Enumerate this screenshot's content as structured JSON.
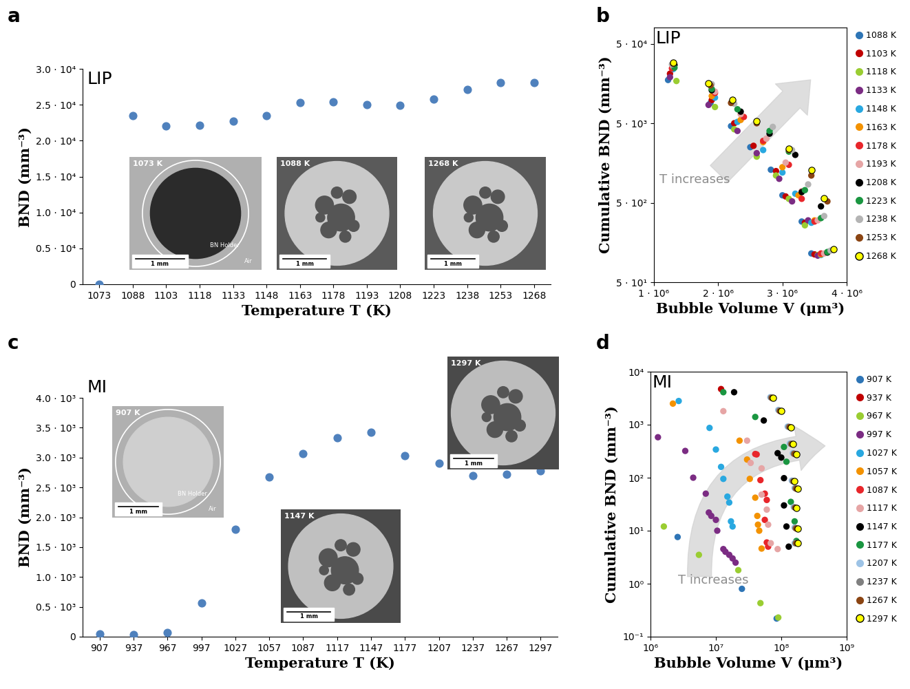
{
  "chart_data": [
    {
      "type": "scatter",
      "title": "a",
      "subtitle": "LIP",
      "xlabel": "Temperature T (K)",
      "ylabel": "BND (mm⁻³)",
      "categories": [
        "1073",
        "1088",
        "1103",
        "1118",
        "1133",
        "1148",
        "1163",
        "1178",
        "1193",
        "1208",
        "1223",
        "1238",
        "1253",
        "1268"
      ],
      "values": [
        0,
        23500,
        22000,
        22100,
        22700,
        23500,
        25300,
        25400,
        25000,
        24900,
        25800,
        27100,
        28100,
        28100
      ],
      "color": "#4f81bd",
      "marker": "o",
      "ylim": [
        0,
        30000
      ],
      "yticks": [
        0,
        {
          "value": 5000,
          "label": "0.5 · 10⁴"
        },
        {
          "value": 10000,
          "label": "1.0 · 10⁴"
        },
        {
          "value": 15000,
          "label": "1.5 · 10⁴"
        },
        {
          "value": 20000,
          "label": "2.0 · 10⁴"
        },
        {
          "value": 25000,
          "label": "2.5 · 10⁴"
        },
        {
          "value": 30000,
          "label": "3.0 · 10⁴"
        }
      ],
      "insets": [
        {
          "label": "1073 K",
          "holder": "BN Holder",
          "outside": "Air",
          "scale": "1 mm"
        },
        {
          "label": "1088 K",
          "scale": "1 mm"
        },
        {
          "label": "1268 K",
          "scale": "1 mm"
        }
      ]
    },
    {
      "type": "scatter",
      "title": "b",
      "subtitle": "LIP",
      "annotations": [
        "T increases"
      ],
      "xlabel": "Bubble Volume V (μm³)",
      "ylabel": "Cumulative BND (mm⁻³)",
      "log": "y",
      "marker": "o",
      "legend": "upper left",
      "xlim": [
        1000000,
        4000000
      ],
      "xticks": [
        {
          "value": 1000000,
          "label": "1 · 10⁶"
        },
        {
          "value": 2000000,
          "label": "2 · 10⁶"
        },
        {
          "value": 3000000,
          "label": "3 · 10⁶"
        },
        {
          "value": 4000000,
          "label": "4 · 10⁶"
        }
      ],
      "ylim": [
        50,
        80000
      ],
      "yticks": [
        {
          "value": 50,
          "label": "5 · 10¹"
        },
        {
          "value": 500,
          "label": "5 · 10²"
        },
        {
          "value": 5000,
          "label": "5 · 10³"
        },
        {
          "value": 50000,
          "label": "5 · 10⁴"
        }
      ],
      "series": [
        {
          "name": "1088 K",
          "color": "#2e75b6",
          "x": [
            1220000.0,
            1880000.0,
            2200000.0,
            2500000.0,
            2820000.0,
            3000000.0,
            3300000.0,
            3450000.0
          ],
          "values": [
            17500,
            9000,
            4600,
            2500,
            1300,
            620,
            290,
            115
          ]
        },
        {
          "name": "1103 K",
          "color": "#c00000",
          "x": [
            1250000.0,
            1900000.0,
            2250000.0,
            2550000.0,
            2900000.0,
            3050000.0,
            3350000.0,
            3500000.0
          ],
          "values": [
            21000,
            9800,
            5000,
            2600,
            1250,
            600,
            280,
            112
          ]
        },
        {
          "name": "1118 K",
          "color": "#9acd32",
          "x": [
            1350000.0,
            1950000.0,
            2250000.0,
            2600000.0,
            2900000.0,
            3100000.0,
            3350000.0,
            3550000.0
          ],
          "values": [
            17000,
            8000,
            4200,
            1900,
            1100,
            560,
            260,
            110
          ]
        },
        {
          "name": "1133 K",
          "color": "#7b2c83",
          "x": [
            1250000.0,
            1850000.0,
            2300000.0,
            2600000.0,
            2950000.0,
            3150000.0,
            3400000.0,
            3550000.0
          ],
          "values": [
            19000,
            8500,
            4000,
            2100,
            1000,
            520,
            300,
            108
          ]
        },
        {
          "name": "1148 K",
          "color": "#29a8e0",
          "x": [
            1300000.0,
            1950000.0,
            2300000.0,
            2700000.0,
            3000000.0,
            3200000.0,
            3450000.0,
            3600000.0
          ],
          "values": [
            24000,
            10500,
            5200,
            2300,
            1200,
            650,
            280,
            110
          ]
        },
        {
          "name": "1163 K",
          "color": "#f39200",
          "x": [
            1300000.0,
            1900000.0,
            2350000.0,
            2700000.0,
            3000000.0,
            3250000.0,
            3500000.0,
            3600000.0
          ],
          "values": [
            25000,
            11000,
            5500,
            2900,
            1400,
            620,
            300,
            112
          ]
        },
        {
          "name": "1178 K",
          "color": "#e8262b",
          "x": [
            1280000.0,
            1950000.0,
            2400000.0,
            2700000.0,
            3100000.0,
            3300000.0,
            3500000.0,
            3600000.0
          ],
          "values": [
            24500,
            12000,
            6000,
            3000,
            1500,
            560,
            290,
            115
          ]
        },
        {
          "name": "1193 K",
          "color": "#e6a5a5",
          "x": [
            1300000.0,
            1950000.0,
            2350000.0,
            2750000.0,
            3050000.0,
            3300000.0,
            3550000.0,
            3650000.0
          ],
          "values": [
            26000,
            12500,
            6500,
            3200,
            1600,
            700,
            300,
            115
          ]
        },
        {
          "name": "1208 K",
          "color": "#000000",
          "x": [
            1320000.0,
            1900000.0,
            2350000.0,
            2800000.0,
            3200000.0,
            3300000.0,
            3600000.0,
            3700000.0
          ],
          "values": [
            27000,
            13000,
            7000,
            3700,
            2000,
            680,
            450,
            118
          ]
        },
        {
          "name": "1223 K",
          "color": "#1a9641",
          "x": [
            1320000.0,
            1900000.0,
            2300000.0,
            2800000.0,
            3100000.0,
            3350000.0,
            3600000.0,
            3700000.0
          ],
          "values": [
            25000,
            13500,
            7500,
            4000,
            2200,
            720,
            320,
            120
          ]
        },
        {
          "name": "1238 K",
          "color": "#b4b4b4",
          "x": [
            1280000.0,
            1900000.0,
            2250000.0,
            2850000.0,
            3150000.0,
            3400000.0,
            3650000.0,
            3750000.0
          ],
          "values": [
            27500,
            15500,
            8800,
            4500,
            2300,
            850,
            340,
            125
          ]
        },
        {
          "name": "1253 K",
          "color": "#8b4513",
          "x": [
            1300000.0,
            1880000.0,
            2200000.0,
            2600000.0,
            3100000.0,
            3450000.0,
            3700000.0,
            3800000.0
          ],
          "values": [
            28000,
            15000,
            9000,
            5000,
            2300,
            1100,
            520,
            128
          ]
        },
        {
          "name": "1268 K",
          "color": "#ffff00",
          "x": [
            1300000.0,
            1850000.0,
            2220000.0,
            2600000.0,
            3100000.0,
            3450000.0,
            3650000.0,
            3800000.0
          ],
          "values": [
            29000,
            16000,
            9800,
            5300,
            2400,
            1300,
            570,
            130
          ]
        }
      ]
    },
    {
      "type": "scatter",
      "title": "c",
      "subtitle": "MI",
      "xlabel": "Temperature T (K)",
      "ylabel": "BND (mm⁻³)",
      "categories": [
        "907",
        "937",
        "967",
        "997",
        "1027",
        "1057",
        "1087",
        "1117",
        "1147",
        "1177",
        "1207",
        "1237",
        "1267",
        "1297"
      ],
      "values": [
        50,
        40,
        70,
        570,
        1800,
        2670,
        3070,
        3330,
        3420,
        3030,
        2900,
        2700,
        2720,
        2780
      ],
      "color": "#4f81bd",
      "marker": "o",
      "ylim": [
        0,
        4000
      ],
      "yticks": [
        0,
        {
          "value": 500,
          "label": "0.5 · 10³"
        },
        {
          "value": 1000,
          "label": "1.0 · 10³"
        },
        {
          "value": 1500,
          "label": "1.5 · 10³"
        },
        {
          "value": 2000,
          "label": "2.0 · 10³"
        },
        {
          "value": 2500,
          "label": "2.5 · 10³"
        },
        {
          "value": 3000,
          "label": "3.0 · 10³"
        },
        {
          "value": 3500,
          "label": "3.5 · 10³"
        },
        {
          "value": 4000,
          "label": "4.0 · 10³"
        }
      ],
      "insets": [
        {
          "label": "907 K",
          "holder": "BN Holder",
          "outside": "Air",
          "scale": "1 mm"
        },
        {
          "label": "1147 K",
          "scale": "1 mm"
        },
        {
          "label": "1297 K",
          "scale": "1 mm"
        }
      ]
    },
    {
      "type": "scatter",
      "title": "d",
      "subtitle": "MI",
      "annotations": [
        "T increases"
      ],
      "xlabel": "Bubble Volume V (μm³)",
      "ylabel": "Cumulative BND (mm⁻³)",
      "log": true,
      "marker": "o",
      "legend": "upper left",
      "xlim": [
        1000000,
        1000000000
      ],
      "xticks": [
        {
          "value": 1000000,
          "label": "10⁶"
        },
        {
          "value": 10000000,
          "label": "10⁷"
        },
        {
          "value": 100000000,
          "label": "10⁸"
        },
        {
          "value": 1000000000,
          "label": "10⁹"
        }
      ],
      "ylim": [
        0.1,
        10000
      ],
      "yticks": [
        {
          "value": 0.1,
          "label": "10⁻¹"
        },
        {
          "value": 1,
          "label": "10⁰"
        },
        {
          "value": 10,
          "label": "10¹"
        },
        {
          "value": 100,
          "label": "10²"
        },
        {
          "value": 1000,
          "label": "10³"
        },
        {
          "value": 10000,
          "label": "10⁴"
        }
      ],
      "series": [
        {
          "name": "907 K",
          "color": "#2e75b6",
          "x": [
            2600000.0,
            25000000.0,
            85000000.0
          ],
          "values": [
            7.6,
            0.8,
            0.22
          ]
        },
        {
          "name": "937 K",
          "color": "#c00000",
          "x": [
            12000000.0
          ],
          "values": [
            4700
          ]
        },
        {
          "name": "967 K",
          "color": "#9acd32",
          "x": [
            1600000.0,
            5500000.0,
            22000000.0,
            48000000.0,
            90000000.0
          ],
          "values": [
            12,
            3.5,
            1.8,
            0.43,
            0.23
          ]
        },
        {
          "name": "997 K",
          "color": "#7b2c83",
          "x": [
            1300000.0,
            3400000.0,
            4500000.0,
            7000000.0,
            7800000.0,
            8500000.0,
            10000000.0,
            10500000.0,
            13000000.0,
            14000000.0,
            16000000.0,
            18000000.0,
            20000000.0
          ],
          "values": [
            580,
            320,
            100,
            50,
            22,
            19,
            16,
            10,
            4.5,
            4,
            3.5,
            3,
            2.5
          ]
        },
        {
          "name": "1027 K",
          "color": "#29a8e0",
          "x": [
            2700000.0,
            8000000.0,
            10000000.0,
            12000000.0,
            13000000.0,
            15000000.0,
            16000000.0,
            17000000.0,
            18000000.0
          ],
          "values": [
            2800,
            870,
            340,
            160,
            95,
            44,
            34,
            15,
            12
          ]
        },
        {
          "name": "1057 K",
          "color": "#f39200",
          "x": [
            2200000.0,
            23000000.0,
            30000000.0,
            33000000.0,
            40000000.0,
            43000000.0,
            44000000.0,
            46000000.0,
            50000000.0
          ],
          "values": [
            2500,
            500,
            220,
            95,
            42,
            19,
            13,
            10,
            4.6
          ]
        },
        {
          "name": "1087 K",
          "color": "#e8262b",
          "x": [
            40000000.0,
            42000000.0,
            48000000.0,
            56000000.0,
            60000000.0,
            56000000.0,
            60000000.0,
            63000000.0
          ],
          "values": [
            280,
            275,
            90,
            50,
            38,
            16,
            6,
            5
          ]
        },
        {
          "name": "1117 K",
          "color": "#e6a5a5",
          "x": [
            13000000.0,
            30000000.0,
            34000000.0,
            50000000.0,
            50000000.0,
            60000000.0,
            63000000.0,
            69000000.0,
            88000000.0
          ],
          "values": [
            1800,
            500,
            190,
            150,
            48,
            25,
            13,
            5.8,
            4.5
          ]
        },
        {
          "name": "1147 K",
          "color": "#000000",
          "x": [
            19000000.0,
            54000000.0,
            88000000.0,
            100000000.0,
            110000000.0,
            110000000.0,
            120000000.0,
            130000000.0
          ],
          "values": [
            4100,
            1200,
            290,
            240,
            98,
            30,
            12,
            5
          ]
        },
        {
          "name": "1177 K",
          "color": "#1a9641",
          "x": [
            13000000.0,
            40000000.0,
            110000000.0,
            120000000.0,
            140000000.0,
            160000000.0,
            170000000.0
          ],
          "values": [
            4100,
            1400,
            380,
            200,
            35,
            15,
            6.4
          ]
        },
        {
          "name": "1207 K",
          "color": "#9dc3e6",
          "x": [
            68000000.0,
            90000000.0,
            125000000.0,
            135000000.0,
            150000000.0,
            145000000.0,
            160000000.0,
            155000000.0,
            160000000.0,
            160000000.0
          ],
          "values": [
            3300,
            1900,
            920,
            440,
            290,
            88,
            64,
            28,
            11.5,
            5.8
          ]
        },
        {
          "name": "1237 K",
          "color": "#808080",
          "x": [
            70000000.0,
            93000000.0,
            130000000.0,
            140000000.0,
            155000000.0,
            150000000.0,
            165000000.0,
            160000000.0,
            165000000.0,
            165000000.0
          ],
          "values": [
            3250,
            1850,
            910,
            435,
            285,
            86,
            63,
            27.5,
            11.2,
            5.8
          ]
        },
        {
          "name": "1267 K",
          "color": "#8b4513",
          "x": [
            72000000.0,
            96000000.0,
            135000000.0,
            145000000.0,
            160000000.0,
            155000000.0,
            170000000.0,
            165000000.0,
            170000000.0,
            170000000.0
          ],
          "values": [
            3200,
            1800,
            900,
            430,
            280,
            85,
            62,
            27,
            11,
            5.8
          ]
        },
        {
          "name": "1297 K",
          "color": "#ffff00",
          "x": [
            75000000.0,
            100000000.0,
            140000000.0,
            150000000.0,
            170000000.0,
            160000000.0,
            180000000.0,
            170000000.0,
            180000000.0,
            180000000.0
          ],
          "values": [
            3200,
            1800,
            900,
            430,
            280,
            85,
            62,
            27,
            11,
            5.8
          ]
        }
      ]
    }
  ]
}
